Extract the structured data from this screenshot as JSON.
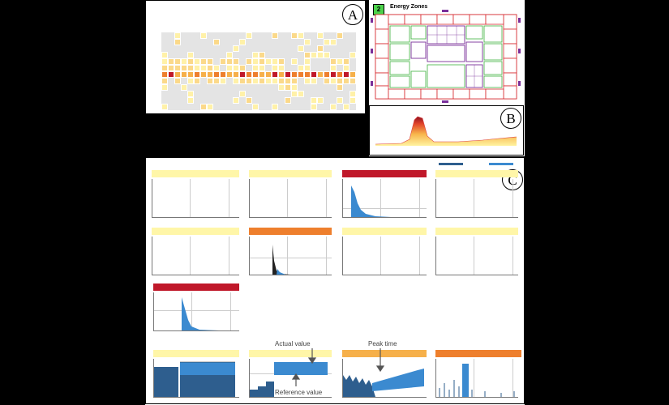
{
  "labels": {
    "a": "A",
    "b": "B",
    "c": "C"
  },
  "energy_zones": {
    "title": "Energy Zones",
    "badge_number": "2"
  },
  "annotations": {
    "actual_value": "Actual value",
    "reference_value": "Reference value",
    "top_note": "Peak time"
  },
  "colors": {
    "hot": "#c0182a",
    "warm": "#ee7f2d",
    "mild": "#f6b04a",
    "light": "#fbd98a",
    "pale": "#fff1a8",
    "blue": "#3b8ad0",
    "navy": "#2e5e8e",
    "zone_green": "#3eb13e",
    "zone_purple": "#7a2f9a",
    "zone_red": "#d6282d"
  }
}
